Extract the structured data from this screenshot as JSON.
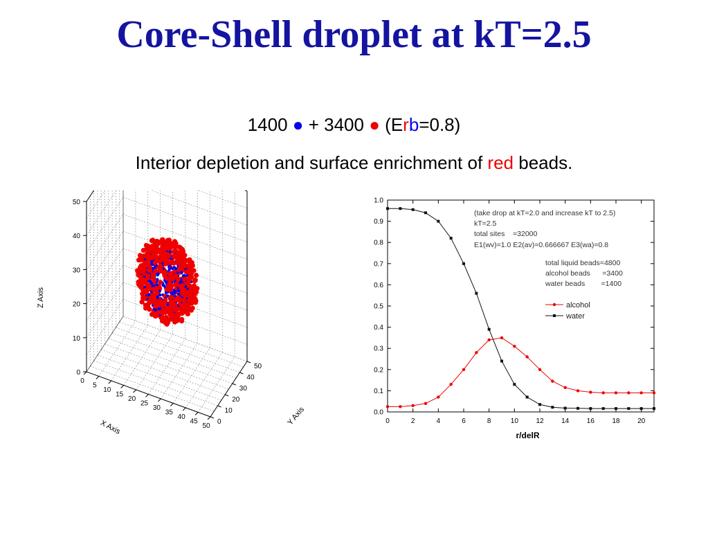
{
  "slide": {
    "title": "Core-Shell droplet at kT=2.5",
    "composition": {
      "water_count": "1400",
      "water_dot": "●",
      "plus": "+",
      "alcohol_count": "3400",
      "alcohol_dot": "●",
      "param_open": "(E",
      "param_r": "r",
      "param_b": "b",
      "param_rest": "=0.8)"
    },
    "caption": {
      "before": "Interior depletion and surface enrichment of",
      "highlight": "red",
      "after": "beads."
    },
    "colors": {
      "title": "#1414a0",
      "water": "#0000ee",
      "alcohol": "#ee0000"
    }
  },
  "chart_data": [
    {
      "type": "scatter",
      "dimensions": 3,
      "xlabel": "X Axis",
      "ylabel": "Y Axis",
      "zlabel": "Z Axis",
      "x_ticks": [
        "0",
        "5",
        "10",
        "15",
        "20",
        "25",
        "30",
        "35",
        "40",
        "45",
        "50"
      ],
      "y_ticks": [
        "0",
        "10",
        "20",
        "30",
        "40",
        "50"
      ],
      "z_ticks": [
        "0",
        "10",
        "20",
        "30",
        "40",
        "50"
      ],
      "xlim": [
        0,
        50
      ],
      "ylim": [
        0,
        50
      ],
      "zlim": [
        0,
        50
      ],
      "grid": true,
      "series": [
        {
          "color": "#0000ee",
          "count": 1400
        },
        {
          "color": "#ee0000",
          "count": 3400
        }
      ],
      "droplet_center": [
        25,
        25,
        25
      ],
      "droplet_radius": 12
    },
    {
      "type": "line",
      "xlabel": "r/delR",
      "ylabel": "",
      "xlim": [
        0,
        21
      ],
      "ylim": [
        0,
        1.0
      ],
      "x_ticks": [
        "0",
        "2",
        "4",
        "6",
        "8",
        "10",
        "12",
        "14",
        "16",
        "18",
        "20"
      ],
      "y_ticks": [
        "0.0",
        "0.1",
        "0.2",
        "0.3",
        "0.4",
        "0.5",
        "0.6",
        "0.7",
        "0.8",
        "0.9",
        "1.0"
      ],
      "grid": false,
      "x": [
        0,
        1,
        2,
        3,
        4,
        5,
        6,
        7,
        8,
        9,
        10,
        11,
        12,
        13,
        14,
        15,
        16,
        17,
        18,
        19,
        20,
        21
      ],
      "series": [
        {
          "name": "alcohol",
          "color": "#ee0000",
          "marker": "circle",
          "values": [
            0.025,
            0.025,
            0.03,
            0.04,
            0.07,
            0.13,
            0.2,
            0.28,
            0.34,
            0.35,
            0.31,
            0.26,
            0.2,
            0.145,
            0.115,
            0.1,
            0.093,
            0.09,
            0.09,
            0.09,
            0.09,
            0.09
          ]
        },
        {
          "name": "water",
          "color": "#111111",
          "marker": "square",
          "values": [
            0.96,
            0.96,
            0.955,
            0.94,
            0.9,
            0.82,
            0.7,
            0.56,
            0.39,
            0.24,
            0.13,
            0.07,
            0.035,
            0.022,
            0.018,
            0.017,
            0.016,
            0.016,
            0.016,
            0.016,
            0.016,
            0.016
          ]
        }
      ],
      "annotations": [
        "(take drop at kT=2.0 and increase kT to 2.5)",
        "kT=2.5",
        "total sites    =32000",
        "E1(wv)=1.0 E2(av)=0.666667 E3(wa)=0.8",
        "total liquid beads=4800",
        "alcohol beads      =3400",
        "water beads        =1400"
      ],
      "legend": [
        "alcohol",
        "water"
      ],
      "legend_position": "right"
    }
  ]
}
